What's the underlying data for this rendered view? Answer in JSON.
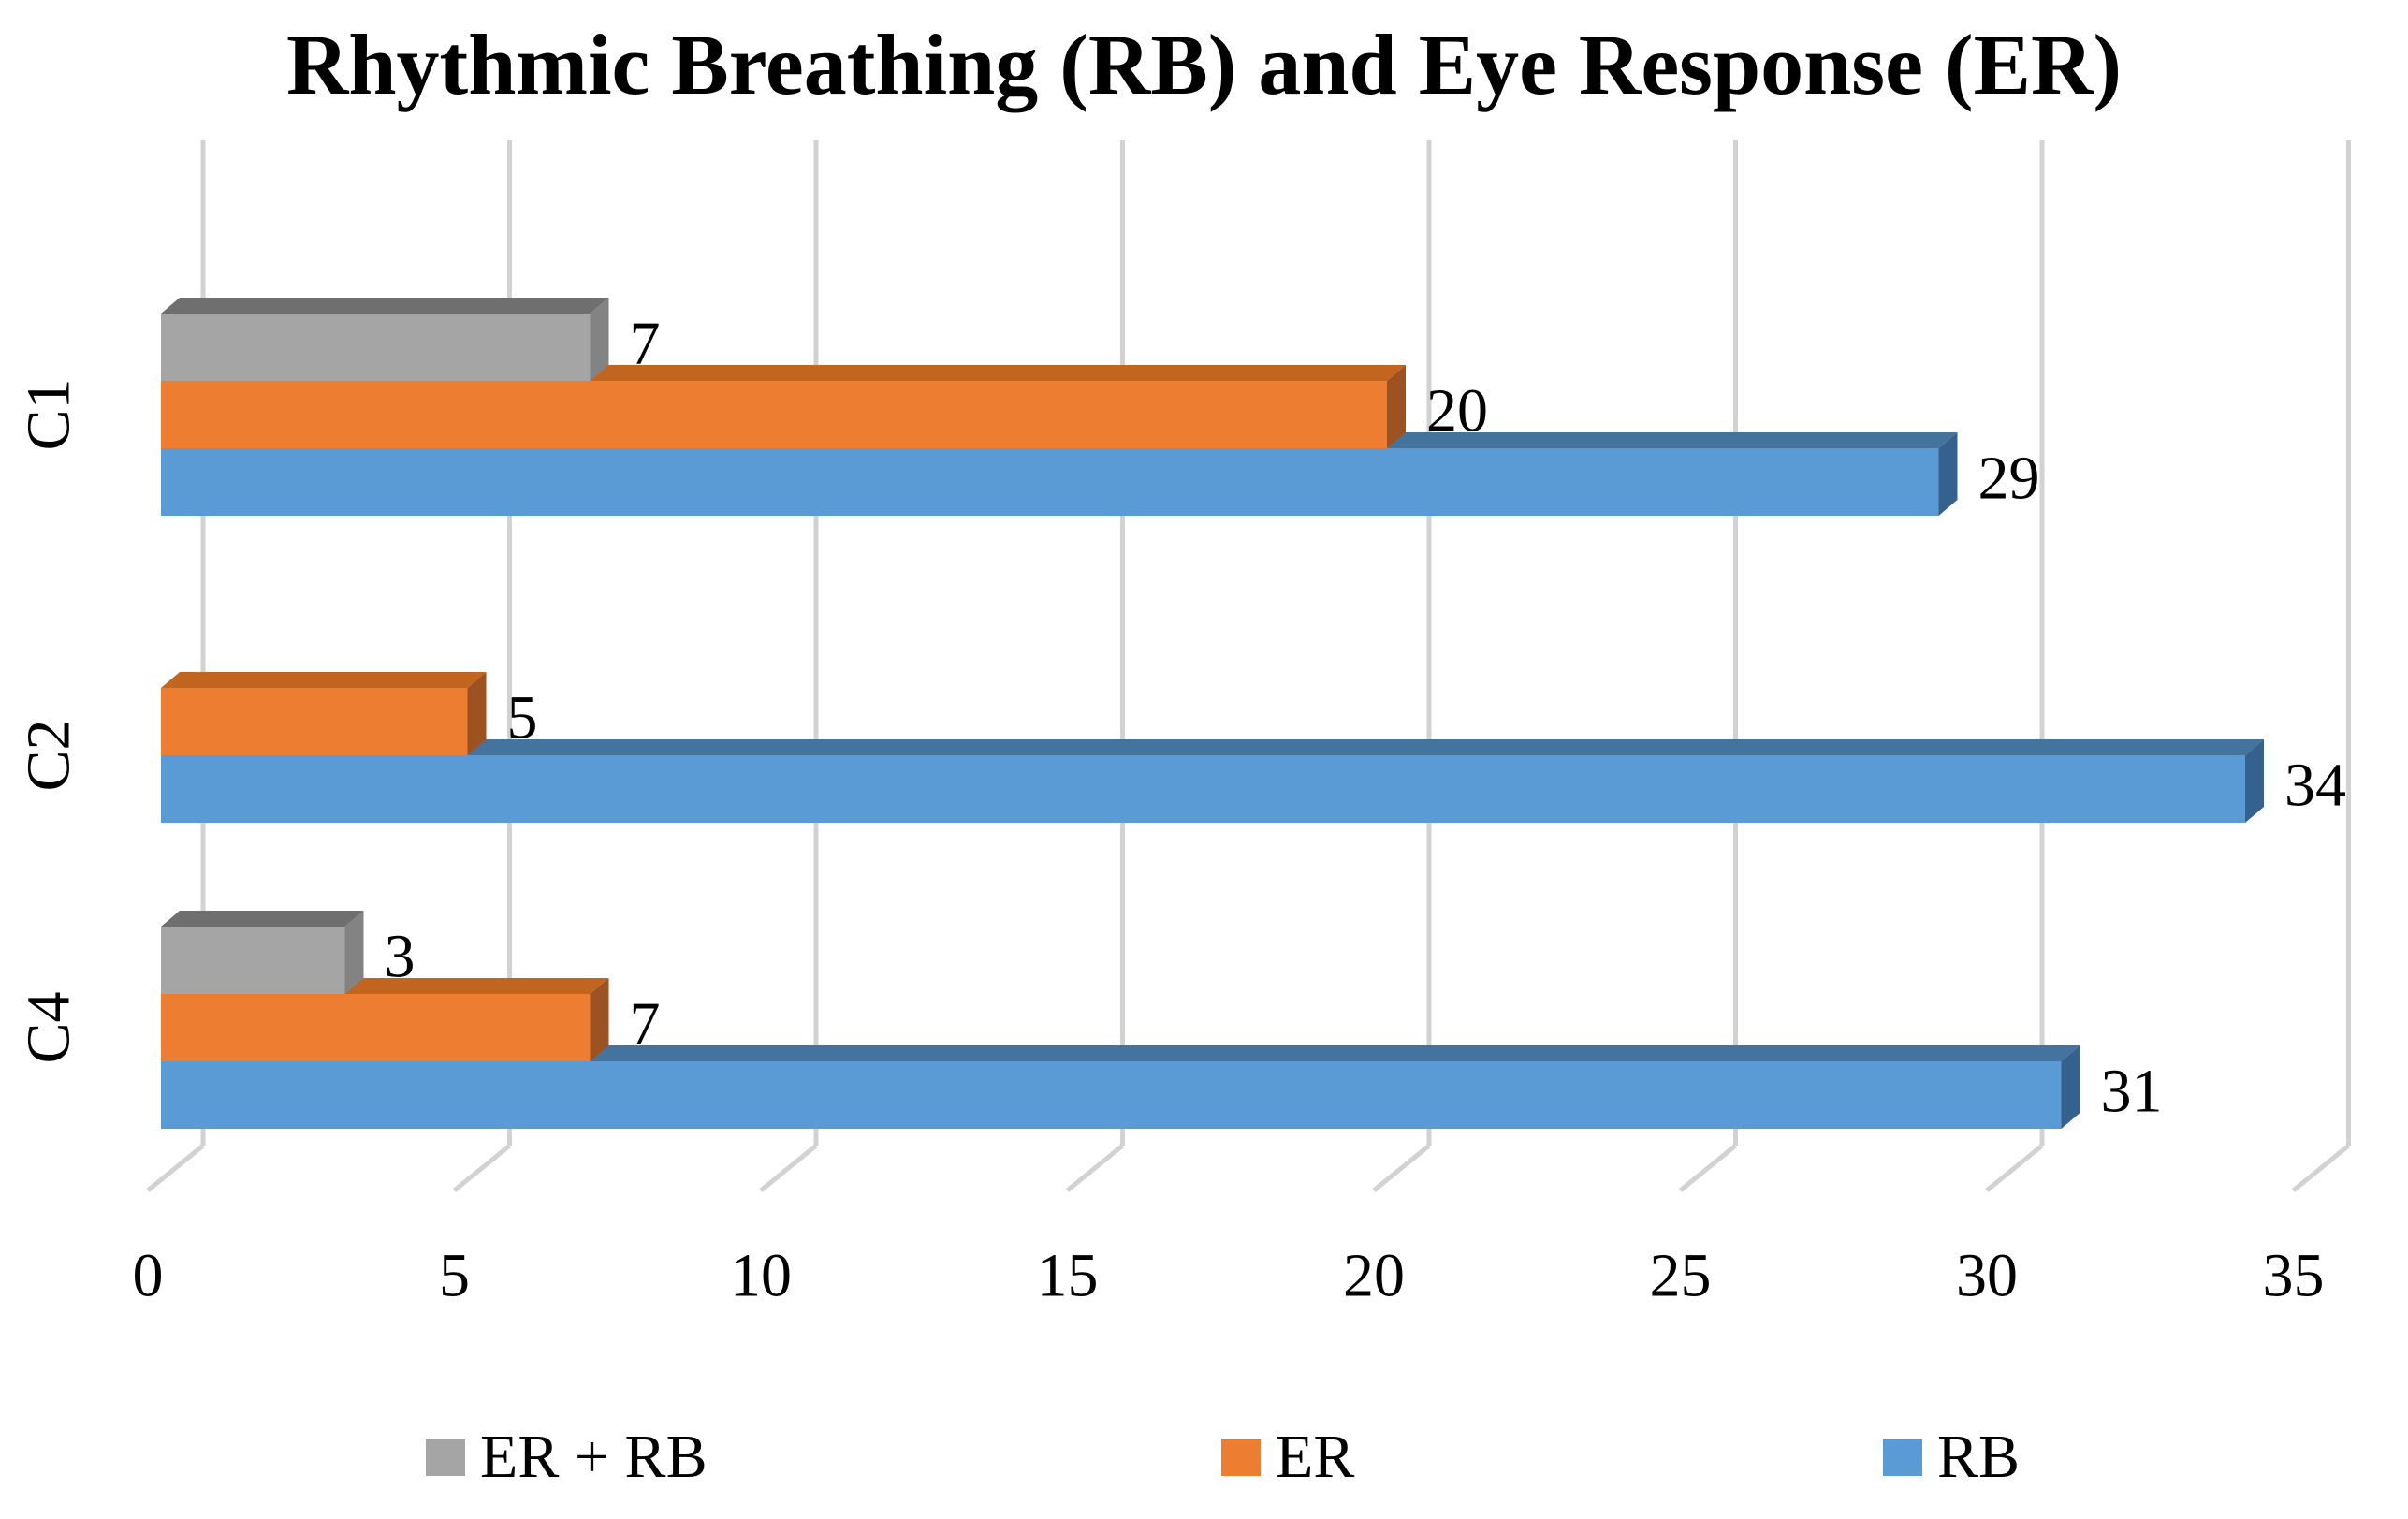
{
  "chart_data": {
    "type": "bar",
    "orientation": "horizontal",
    "effect": "3d",
    "title": "Rhythmic Breathing (RB) and Eye Response (ER)",
    "categories": [
      "C1",
      "C2",
      "C4"
    ],
    "series": [
      {
        "name": "ER + RB",
        "color": "#A5A5A5",
        "top_color": "#6F6F6F",
        "side_color": "#838383",
        "values": [
          7,
          null,
          3
        ]
      },
      {
        "name": "ER",
        "color": "#ED7D31",
        "top_color": "#C2661F",
        "side_color": "#9D5321",
        "values": [
          20,
          5,
          7
        ]
      },
      {
        "name": "RB",
        "color": "#5B9BD5",
        "top_color": "#44749E",
        "side_color": "#34618E",
        "values": [
          29,
          34,
          31
        ]
      }
    ],
    "xlabel": "",
    "ylabel": "",
    "xlim": [
      0,
      35
    ],
    "xticks": [
      0,
      5,
      10,
      15,
      20,
      25,
      30,
      35
    ],
    "grid": true,
    "gridline_color": "#D2D2D2",
    "data_labels": true,
    "legend_position": "bottom",
    "legend": [
      "ER + RB",
      "ER",
      "RB"
    ],
    "text_color": "#000000",
    "background": "#FFFFFF"
  }
}
